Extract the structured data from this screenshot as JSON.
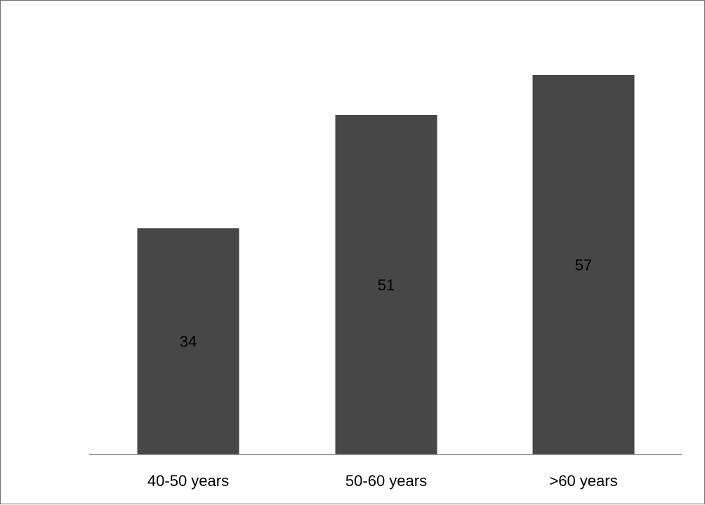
{
  "chart_data": {
    "type": "bar",
    "categories": [
      "40-50 years",
      "50-60 years",
      ">60 years"
    ],
    "values": [
      34,
      51,
      57
    ],
    "title": "",
    "xlabel": "",
    "ylabel": "",
    "ylim": [
      0,
      57
    ],
    "grid": false,
    "legend": "none",
    "data_labels": "inside-bar-center",
    "bar_color": "#474747",
    "axis_color": "#7f7f7f",
    "frame_color": "#6e6e6e"
  }
}
